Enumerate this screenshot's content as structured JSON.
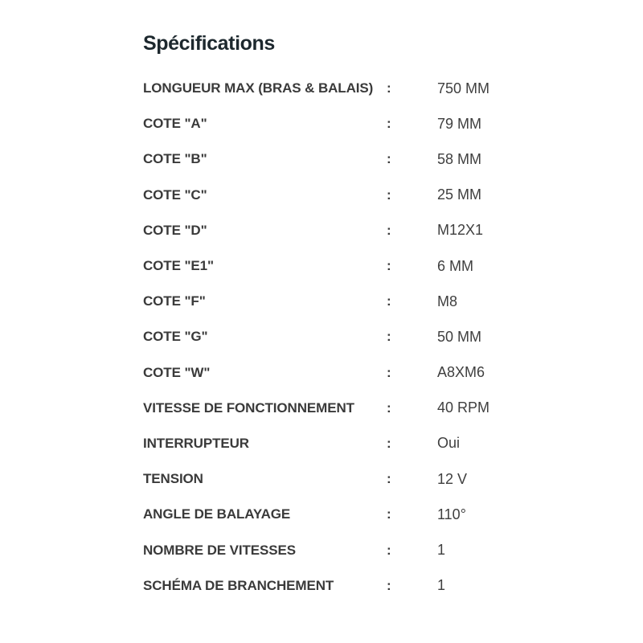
{
  "page": {
    "title": "Spécifications",
    "separator": ":",
    "colors": {
      "background": "#ffffff",
      "title": "#1d282e",
      "label": "#3a3a3a",
      "value": "#3f3f3f"
    }
  },
  "specs": {
    "rows": [
      {
        "label": "LONGUEUR MAX (BRAS & BALAIS)",
        "value": "750 MM"
      },
      {
        "label": "COTE \"A\"",
        "value": "79 MM"
      },
      {
        "label": "COTE \"B\"",
        "value": "58 MM"
      },
      {
        "label": "COTE \"C\"",
        "value": "25 MM"
      },
      {
        "label": "COTE \"D\"",
        "value": "M12X1"
      },
      {
        "label": "COTE \"E1\"",
        "value": "6 MM"
      },
      {
        "label": "COTE \"F\"",
        "value": "M8"
      },
      {
        "label": "COTE \"G\"",
        "value": "50 MM"
      },
      {
        "label": "COTE \"W\"",
        "value": "A8XM6"
      },
      {
        "label": "VITESSE DE FONCTIONNEMENT",
        "value": "40 RPM"
      },
      {
        "label": "INTERRUPTEUR",
        "value": "Oui"
      },
      {
        "label": "TENSION",
        "value": "12 V"
      },
      {
        "label": "ANGLE DE BALAYAGE",
        "value": "110°"
      },
      {
        "label": "NOMBRE DE VITESSES",
        "value": "1"
      },
      {
        "label": "SCHÉMA DE BRANCHEMENT",
        "value": "1"
      }
    ]
  }
}
